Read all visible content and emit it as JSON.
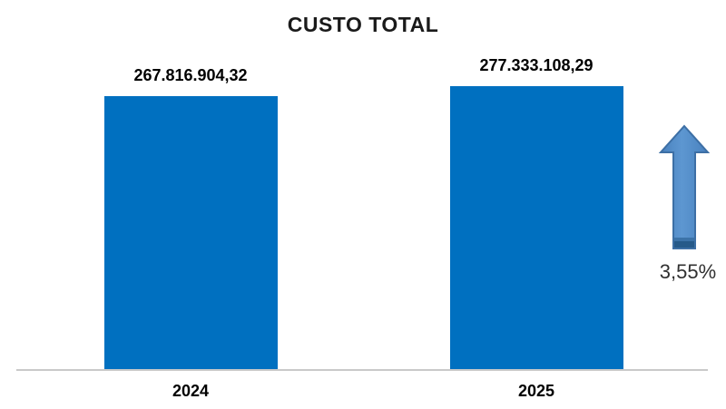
{
  "chart_data": {
    "type": "bar",
    "title": "CUSTO TOTAL",
    "categories": [
      "2024",
      "2025"
    ],
    "values": [
      267816904.32,
      277333108.29
    ],
    "data_labels": [
      "267.816.904,32",
      "277.333.108,29"
    ],
    "xlabel": "",
    "ylabel": "",
    "ylim": [
      0,
      290000000
    ],
    "grid": false,
    "legend": false,
    "bar_color": "#0070C0",
    "axis_line_color": "#C9C9C9",
    "label_color": "#000000",
    "layout_hint": "no y-axis; data labels above bars; category labels below baseline"
  },
  "annotation": {
    "label": "3,55%",
    "icon": "up-arrow-icon",
    "arrow_fill": "#5390CE",
    "arrow_border": "#3D6FA5",
    "arrow_band_color": "#265A89"
  }
}
